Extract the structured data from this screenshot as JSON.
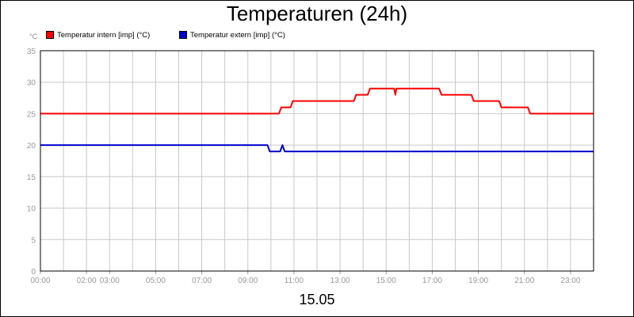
{
  "chart_data": {
    "type": "line",
    "title": "Temperaturen (24h)",
    "xlabel": "15.05",
    "ylabel": "°C",
    "xlim": [
      0,
      24
    ],
    "ylim": [
      0,
      35
    ],
    "yticks": [
      0,
      5,
      10,
      15,
      20,
      25,
      30,
      35
    ],
    "xticks": [
      {
        "value": 0,
        "label": "00:00"
      },
      {
        "value": 2,
        "label": "02:00"
      },
      {
        "value": 3,
        "label": "03:00"
      },
      {
        "value": 5,
        "label": "05:00"
      },
      {
        "value": 7,
        "label": "07:00"
      },
      {
        "value": 9,
        "label": "09:00"
      },
      {
        "value": 11,
        "label": "11:00"
      },
      {
        "value": 13,
        "label": "13:00"
      },
      {
        "value": 15,
        "label": "15:00"
      },
      {
        "value": 17,
        "label": "17:00"
      },
      {
        "value": 19,
        "label": "19:00"
      },
      {
        "value": 21,
        "label": "21:00"
      },
      {
        "value": 23,
        "label": "23:00"
      }
    ],
    "grid": true,
    "legend_position": "top-left",
    "series": [
      {
        "name": "Temperatur intern [imp] (°C)",
        "color": "#ff0000",
        "points": [
          [
            0,
            25
          ],
          [
            10.35,
            25
          ],
          [
            10.45,
            26
          ],
          [
            10.85,
            26
          ],
          [
            10.95,
            27
          ],
          [
            13.6,
            27
          ],
          [
            13.7,
            28
          ],
          [
            14.2,
            28
          ],
          [
            14.3,
            29
          ],
          [
            15.35,
            29
          ],
          [
            15.4,
            28
          ],
          [
            15.45,
            29
          ],
          [
            17.3,
            29
          ],
          [
            17.4,
            28
          ],
          [
            18.7,
            28
          ],
          [
            18.8,
            27
          ],
          [
            19.9,
            27
          ],
          [
            20.0,
            26
          ],
          [
            21.15,
            26
          ],
          [
            21.25,
            25
          ],
          [
            24,
            25
          ]
        ]
      },
      {
        "name": "Temperatur extern [imp] (°C)",
        "color": "#0000cc",
        "points": [
          [
            0,
            20
          ],
          [
            9.85,
            20
          ],
          [
            9.95,
            19
          ],
          [
            10.4,
            19
          ],
          [
            10.5,
            20
          ],
          [
            10.6,
            19
          ],
          [
            24,
            19
          ]
        ]
      }
    ]
  }
}
